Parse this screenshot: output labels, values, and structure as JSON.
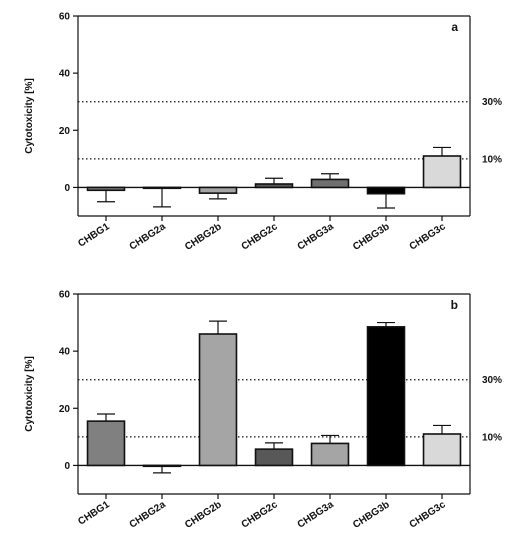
{
  "chart_data": [
    {
      "type": "bar",
      "panel_label": "a",
      "ylabel": "Cytotoxicity [%]",
      "ylim": [
        -10,
        60
      ],
      "yticks": [
        0,
        20,
        40,
        60
      ],
      "categories": [
        "CHBG1",
        "CHBG2a",
        "CHBG2b",
        "CHBG2c",
        "CHBG3a",
        "CHBG3b",
        "CHBG3c"
      ],
      "values": [
        -1,
        -0.3,
        -2,
        1.2,
        2.8,
        -2.2,
        11
      ],
      "errors": [
        4,
        6.5,
        2,
        2,
        2,
        5,
        3
      ],
      "colors": [
        "#808080",
        "#ffffff",
        "#a5a5a5",
        "#585858",
        "#6f6f6f",
        "#000000",
        "#d9d9d9"
      ],
      "reference_lines": [
        {
          "y": 30,
          "label": "30%"
        },
        {
          "y": 10,
          "label": "10%"
        }
      ],
      "grid": false
    },
    {
      "type": "bar",
      "panel_label": "b",
      "ylabel": "Cytotoxicity [%]",
      "ylim": [
        -10,
        60
      ],
      "yticks": [
        0,
        20,
        40,
        60
      ],
      "categories": [
        "CHBG1",
        "CHBG2a",
        "CHBG2b",
        "CHBG2c",
        "CHBG3a",
        "CHBG3b",
        "CHBG3c"
      ],
      "values": [
        15.5,
        -0.3,
        46,
        5.7,
        7.7,
        48.5,
        11
      ],
      "errors": [
        2.5,
        2.3,
        4.5,
        2.2,
        2.8,
        1.5,
        3
      ],
      "colors": [
        "#808080",
        "#ffffff",
        "#a5a5a5",
        "#585858",
        "#a5a5a5",
        "#000000",
        "#d9d9d9"
      ],
      "reference_lines": [
        {
          "y": 30,
          "label": "30%"
        },
        {
          "y": 10,
          "label": "10%"
        }
      ],
      "grid": false
    }
  ]
}
